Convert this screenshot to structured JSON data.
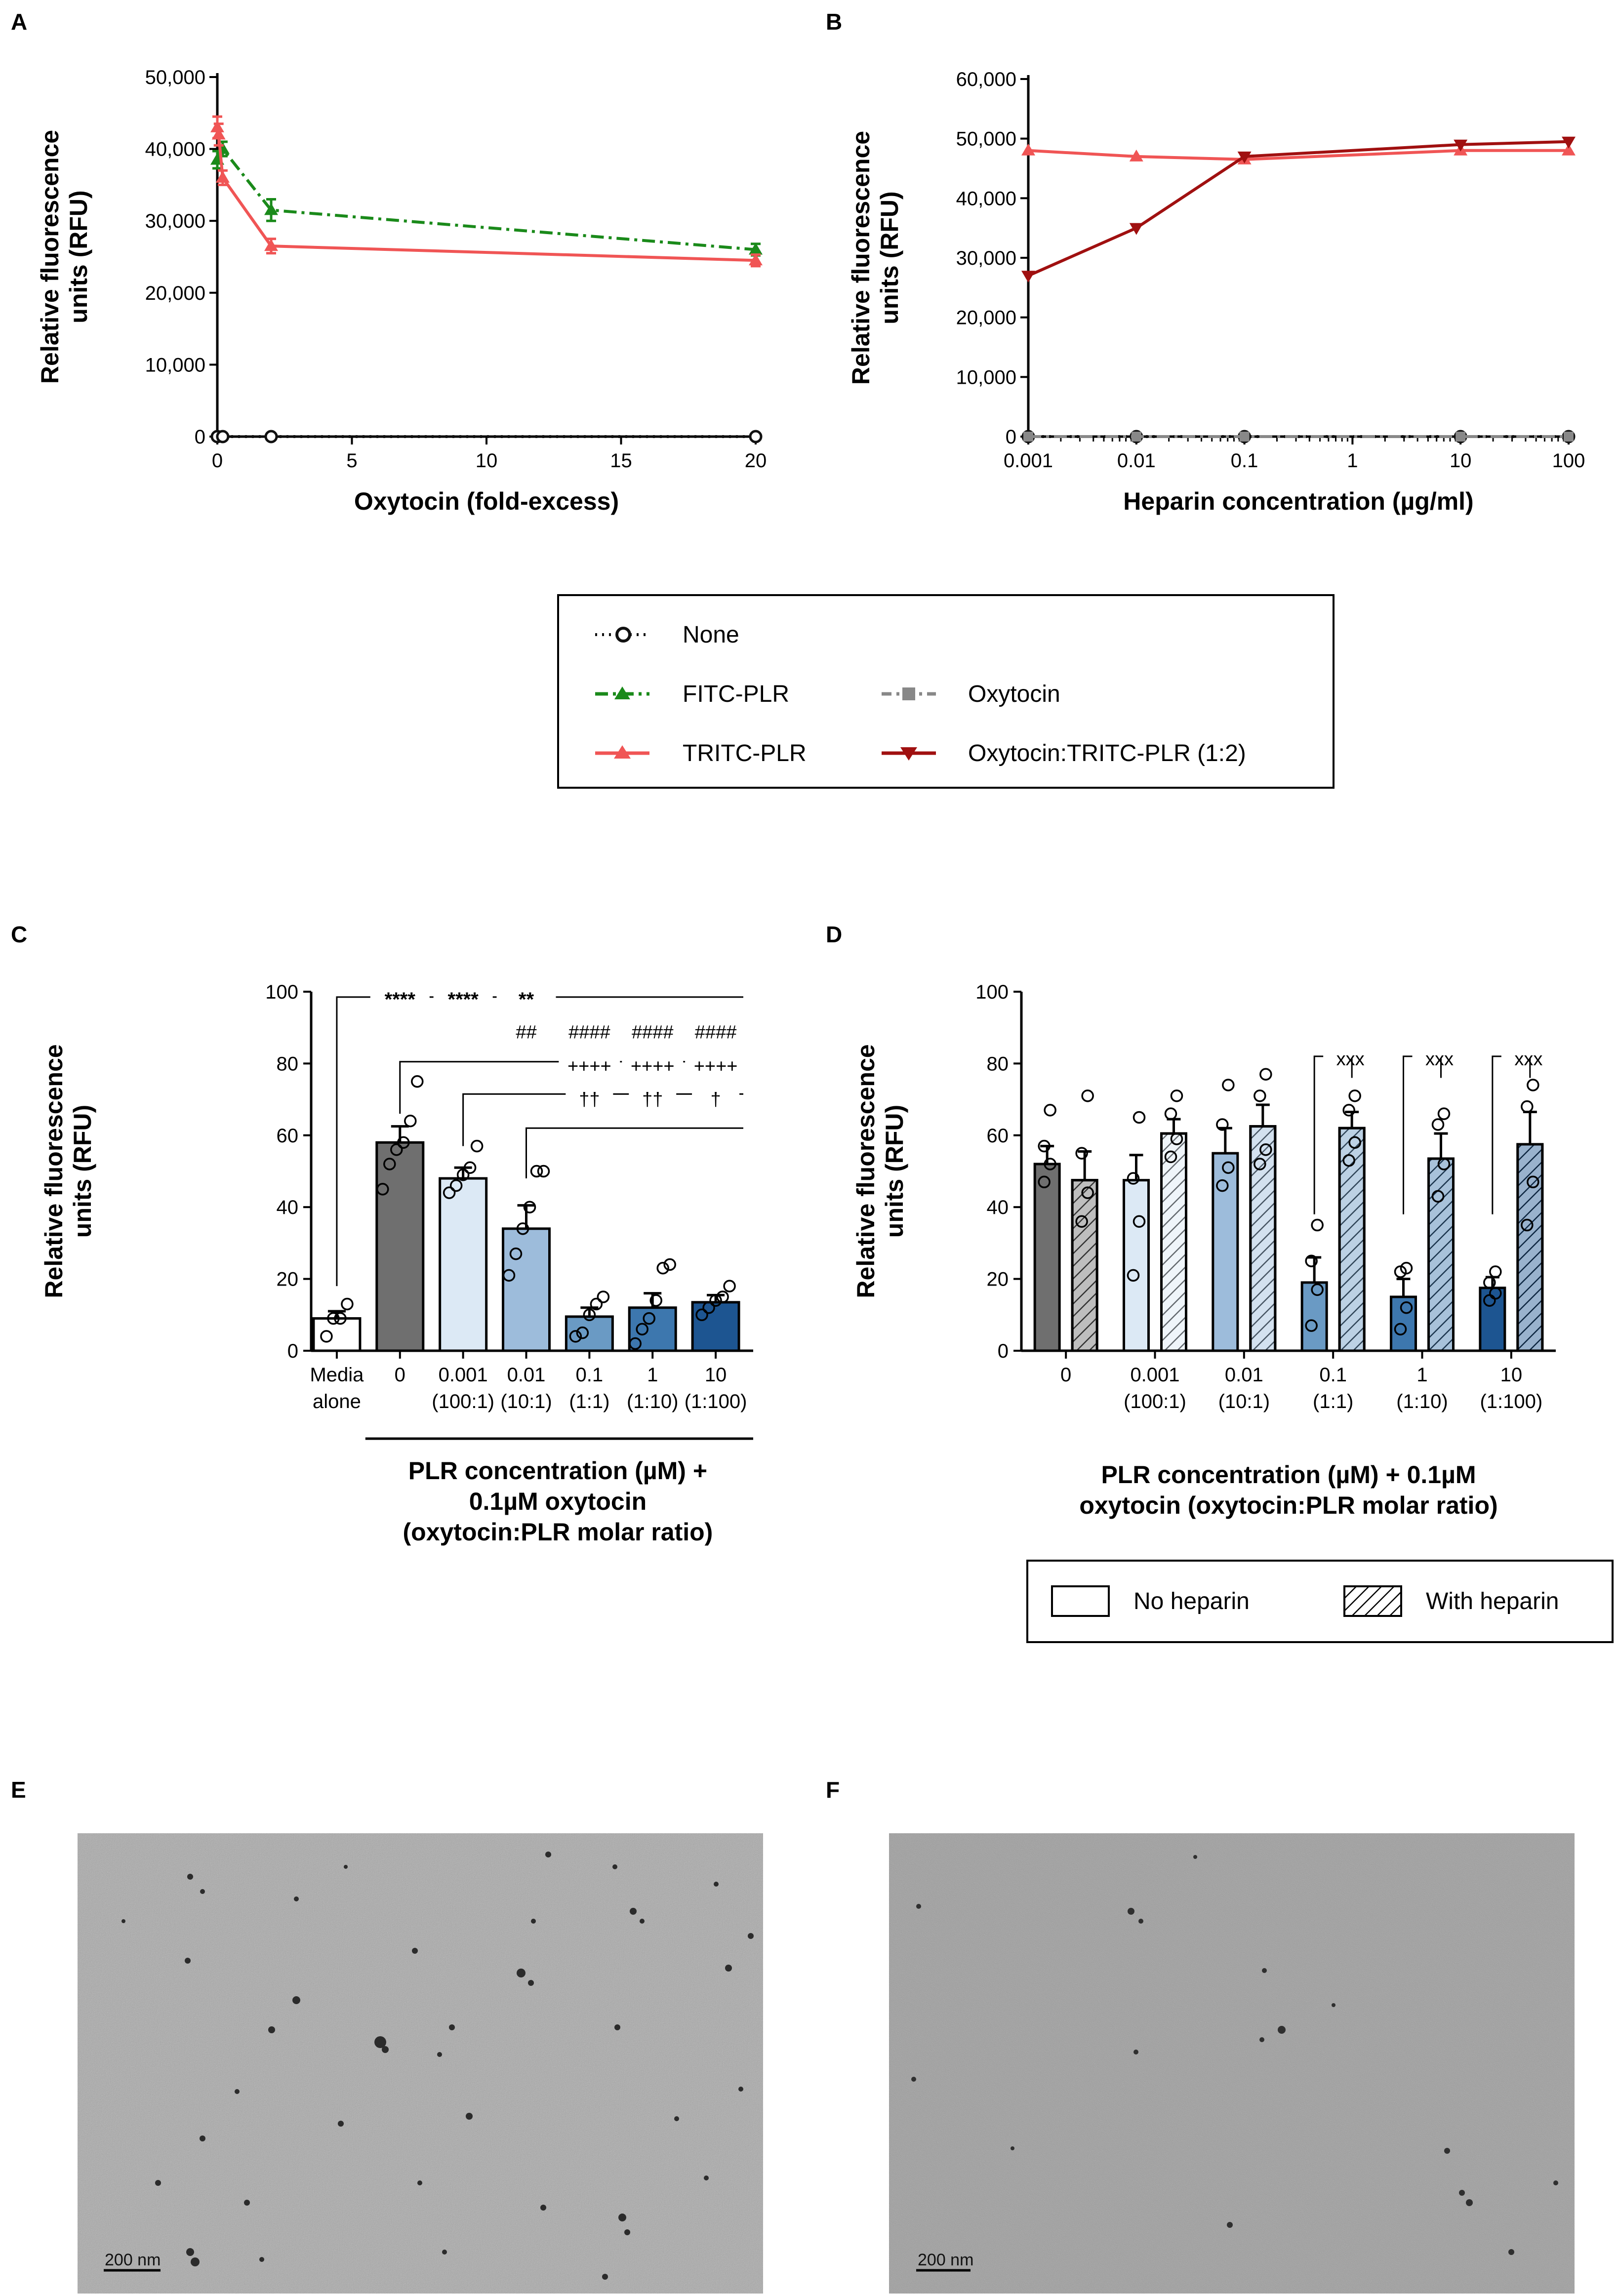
{
  "figure": {
    "panels": [
      "A",
      "B",
      "C",
      "D",
      "E",
      "F"
    ]
  },
  "chart_data": [
    {
      "panel": "A",
      "type": "line",
      "xlabel": "Oxytocin (fold-excess)",
      "ylabel": [
        "Relative fluorescence",
        "units (RFU)"
      ],
      "xlim": [
        0,
        20
      ],
      "ylim": [
        0,
        50000
      ],
      "xticks": [
        0,
        5,
        10,
        15,
        20
      ],
      "yticks": [
        0,
        10000,
        20000,
        30000,
        40000,
        50000
      ],
      "ytick_labels": [
        "0",
        "10,000",
        "20,000",
        "30,000",
        "40,000",
        "50,000"
      ],
      "series": [
        {
          "name": "None",
          "color": "#111111",
          "style": "dotted",
          "marker": "circle-open",
          "x": [
            0,
            0.2,
            2,
            20
          ],
          "y": [
            0,
            0,
            0,
            0
          ],
          "err": [
            0,
            0,
            0,
            0
          ]
        },
        {
          "name": "FITC-PLR",
          "color": "#1a8a1a",
          "style": "dashdot",
          "marker": "triangle-up",
          "x": [
            0,
            0.2,
            2,
            20
          ],
          "y": [
            38500,
            40000,
            31500,
            26000
          ],
          "err": [
            1200,
            1000,
            1500,
            800
          ]
        },
        {
          "name": "TRITC-PLR",
          "color": "#f05555",
          "style": "solid",
          "marker": "triangle-up",
          "x": [
            0,
            0.05,
            0.2,
            2,
            20
          ],
          "y": [
            43000,
            42000,
            36000,
            26500,
            24500
          ],
          "err": [
            1500,
            1500,
            1000,
            1000,
            800
          ]
        }
      ]
    },
    {
      "panel": "B",
      "type": "line",
      "xscale": "log",
      "xlabel": "Heparin concentration (µg/ml)",
      "ylabel": [
        "Relative fluorescence",
        "units (RFU)"
      ],
      "xlim": [
        0.001,
        100
      ],
      "ylim": [
        0,
        60000
      ],
      "xticks": [
        0.001,
        0.01,
        0.1,
        1,
        10,
        100
      ],
      "xtick_labels": [
        "0.001",
        "0.01",
        "0.1",
        "1",
        "10",
        "100"
      ],
      "yticks": [
        0,
        10000,
        20000,
        30000,
        40000,
        50000,
        60000
      ],
      "ytick_labels": [
        "0",
        "10,000",
        "20,000",
        "30,000",
        "40,000",
        "50,000",
        "60,000"
      ],
      "series": [
        {
          "name": "None",
          "color": "#111111",
          "style": "dotted",
          "marker": "circle-open",
          "x": [
            0.001,
            0.01,
            0.1,
            10,
            100
          ],
          "y": [
            0,
            0,
            0,
            0,
            0
          ]
        },
        {
          "name": "Oxytocin",
          "color": "#888888",
          "style": "dashdot",
          "marker": "square",
          "x": [
            0.001,
            0.01,
            0.1,
            10,
            100
          ],
          "y": [
            0,
            0,
            0,
            0,
            0
          ]
        },
        {
          "name": "TRITC-PLR",
          "color": "#f05555",
          "style": "solid",
          "marker": "triangle-up",
          "x": [
            0.001,
            0.01,
            0.1,
            10,
            100
          ],
          "y": [
            48000,
            47000,
            46500,
            48000,
            48000
          ]
        },
        {
          "name": "Oxytocin:TRITC-PLR (1:2)",
          "color": "#a01010",
          "style": "solid",
          "marker": "triangle-down",
          "x": [
            0.001,
            0.01,
            0.1,
            10,
            100
          ],
          "y": [
            27000,
            35000,
            47000,
            49000,
            49500
          ]
        }
      ]
    },
    {
      "panel": "C",
      "type": "bar",
      "ylabel": [
        "Relative fluorescence",
        "units (RFU)"
      ],
      "ylim": [
        0,
        100
      ],
      "yticks": [
        0,
        20,
        40,
        60,
        80,
        100
      ],
      "xlabel": [
        "PLR concentration (µM) +",
        "0.1µM oxytocin",
        "(oxytocin:PLR molar ratio)"
      ],
      "categories": [
        [
          "Media",
          "alone"
        ],
        [
          "0",
          ""
        ],
        [
          "0.001",
          "(100:1)"
        ],
        [
          "0.01",
          "(10:1)"
        ],
        [
          "0.1",
          "(1:1)"
        ],
        [
          "1",
          "(1:10)"
        ],
        [
          "10",
          "(1:100)"
        ]
      ],
      "values": [
        9,
        58,
        48,
        34,
        9.5,
        12,
        13.5
      ],
      "err": [
        2,
        4.5,
        3,
        6.5,
        2.5,
        4,
        2
      ],
      "colors": [
        "#ffffff",
        "#6f6f6f",
        "#dce9f5",
        "#9dbcdb",
        "#6a9ac4",
        "#3d77ae",
        "#1d5591"
      ],
      "points": [
        [
          4,
          9,
          9,
          13
        ],
        [
          45,
          52,
          56,
          58,
          64,
          75
        ],
        [
          44,
          46,
          49,
          51,
          57
        ],
        [
          21,
          27,
          34,
          40,
          50,
          50
        ],
        [
          4,
          5,
          10,
          13,
          15
        ],
        [
          2,
          6,
          9,
          14,
          23,
          24
        ],
        [
          10,
          12,
          14,
          15,
          18
        ]
      ],
      "annotations": {
        "stars": [
          "****",
          "****",
          "**"
        ],
        "hash": [
          "##",
          "####",
          "####",
          "####"
        ],
        "plus": [
          "++++",
          "++++",
          "++++"
        ],
        "dagger": [
          "††",
          "††",
          "†"
        ]
      }
    },
    {
      "panel": "D",
      "type": "bar",
      "ylabel": [
        "Relative fluorescence",
        "units (RFU)"
      ],
      "ylim": [
        0,
        100
      ],
      "yticks": [
        0,
        20,
        40,
        60,
        80,
        100
      ],
      "xlabel": [
        "PLR concentration (µM) + 0.1µM",
        "oxytocin (oxytocin:PLR molar ratio)"
      ],
      "categories": [
        [
          "0",
          ""
        ],
        [
          "0.001",
          "(100:1)"
        ],
        [
          "0.01",
          "(10:1)"
        ],
        [
          "0.1",
          "(1:1)"
        ],
        [
          "1",
          "(1:10)"
        ],
        [
          "10",
          "(1:100)"
        ]
      ],
      "series": [
        {
          "name": "No heparin",
          "values": [
            52,
            47.5,
            55,
            19,
            15,
            17.5
          ],
          "err": [
            5,
            7,
            7,
            7,
            5,
            3
          ],
          "points": [
            [
              47,
              52,
              57,
              67
            ],
            [
              21,
              36,
              48,
              65
            ],
            [
              46,
              51,
              63,
              74
            ],
            [
              7,
              17,
              25,
              35
            ],
            [
              6,
              12,
              22,
              23
            ],
            [
              14,
              16,
              19,
              22
            ]
          ]
        },
        {
          "name": "With heparin",
          "values": [
            47.5,
            60.5,
            62.5,
            62,
            53.5,
            57.5
          ],
          "err": [
            8,
            4,
            6,
            4.5,
            7,
            9
          ],
          "points": [
            [
              36,
              44,
              55,
              71
            ],
            [
              54,
              59,
              66,
              71
            ],
            [
              52,
              56,
              71,
              77
            ],
            [
              53,
              58,
              67,
              71
            ],
            [
              43,
              52,
              63,
              66
            ],
            [
              35,
              47,
              68,
              74
            ]
          ]
        }
      ],
      "colors": [
        "#6f6f6f",
        "#dce9f5",
        "#9dbcdb",
        "#6a9ac4",
        "#3d77ae",
        "#1d5591"
      ],
      "annotations": {
        "xxx": [
          "xxx",
          "xxx",
          "xxx"
        ]
      }
    }
  ],
  "legend_top": {
    "items": [
      "None",
      "FITC-PLR",
      "Oxytocin",
      "TRITC-PLR",
      "Oxytocin:TRITC-PLR (1:2)"
    ]
  },
  "legend_d": {
    "items": [
      "No heparin",
      "With heparin"
    ]
  },
  "micrographs": [
    {
      "panel": "E",
      "scale_label": "200 nm"
    },
    {
      "panel": "F",
      "scale_label": "200 nm"
    }
  ]
}
